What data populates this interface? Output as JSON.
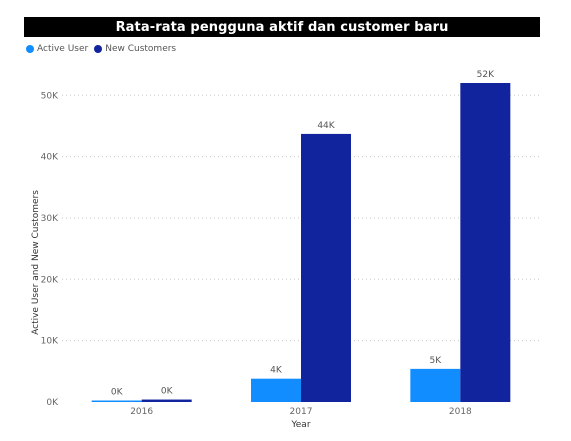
{
  "chart_data": {
    "type": "bar",
    "title": "Rata-rata pengguna aktif dan customer baru",
    "xlabel": "Year",
    "ylabel": "Active User and New Customers",
    "categories": [
      "2016",
      "2017",
      "2018"
    ],
    "series": [
      {
        "name": "Active User",
        "values": [
          0.2,
          3.8,
          5.4
        ],
        "labels": [
          "0K",
          "4K",
          "5K"
        ],
        "color": "#118dff"
      },
      {
        "name": "New Customers",
        "values": [
          0.4,
          43.7,
          52.0
        ],
        "labels": [
          "0K",
          "44K",
          "52K"
        ],
        "color": "#12239e"
      }
    ],
    "ylim": [
      0,
      52
    ],
    "yticks": [
      0,
      10,
      20,
      30,
      40,
      50
    ],
    "ytick_labels": [
      "0K",
      "10K",
      "20K",
      "30K",
      "40K",
      "50K"
    ],
    "grid": true,
    "legend_position": "top-left"
  }
}
